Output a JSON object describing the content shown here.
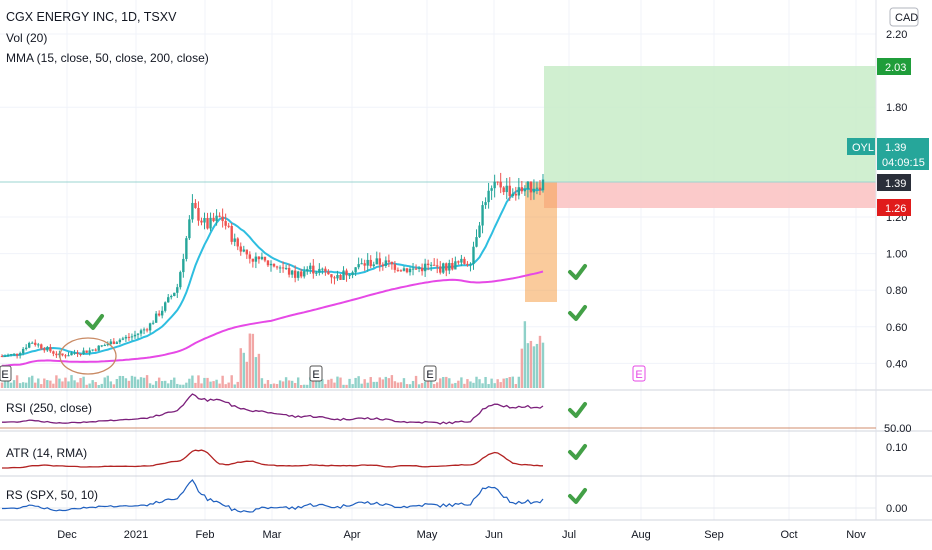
{
  "legend": {
    "title": "CGX ENERGY INC, 1D, TSXV",
    "vol": "Vol (20)",
    "mma": "MMA (15, close, 50, close, 200, close)"
  },
  "currency": "CAD",
  "price_axis": {
    "ticks": [
      "2.20",
      "1.80",
      "1.20",
      "1.00",
      "0.80",
      "0.60",
      "0.40"
    ],
    "tick_values": [
      2.2,
      1.8,
      1.2,
      1.0,
      0.8,
      0.6,
      0.4
    ],
    "range": [
      0.3,
      2.3
    ]
  },
  "badges": {
    "target": "2.03",
    "oyl_symbol": "OYL",
    "oyl_price": "1.39",
    "oyl_countdown": "04:09:15",
    "last": "1.39",
    "stop": "1.26"
  },
  "colors": {
    "up": "#26a69a",
    "down": "#ef5350",
    "ma15": "#2ebee0",
    "ma200": "#e649e6",
    "rsi": "#7b1f7b",
    "atr": "#b22222",
    "rs": "#1e5fbf",
    "target_zone": "#c8ecc8",
    "stop_zone": "#fbc4c4",
    "check": "#43a047"
  },
  "earnings_marker": "E",
  "panes": {
    "rsi": {
      "label": "RSI (250, close)",
      "tick": "50.00"
    },
    "atr": {
      "label": "ATR (14, RMA)",
      "tick": "0.10"
    },
    "rs": {
      "label": "RS (SPX, 50, 10)",
      "tick": "0.00"
    }
  },
  "time_axis": [
    "Dec",
    "2021",
    "Feb",
    "Mar",
    "Apr",
    "May",
    "Jun",
    "Jul",
    "Aug",
    "Sep",
    "Oct",
    "Nov"
  ],
  "chart_data": {
    "type": "candlestick",
    "title": "CGX ENERGY INC, 1D, TSXV",
    "x_axis": [
      "Dec",
      "2021",
      "Feb",
      "Mar",
      "Apr",
      "May",
      "Jun",
      "Jul",
      "Aug",
      "Sep",
      "Oct",
      "Nov"
    ],
    "y_range": [
      0.3,
      2.3
    ],
    "close_series": {
      "name": "close",
      "x": [
        "Nov 24",
        "Dec 1",
        "Dec 8",
        "Dec 15",
        "Dec 22",
        "Dec 29",
        "Jan 5",
        "Jan 12",
        "Jan 19",
        "Jan 26",
        "Feb 2",
        "Feb 9",
        "Feb 14",
        "Feb 18",
        "Feb 22",
        "Feb 24",
        "Feb 26",
        "Mar 3",
        "Mar 10",
        "Mar 17",
        "Mar 24",
        "Mar 31",
        "Apr 7",
        "Apr 14",
        "Apr 21",
        "Apr 28",
        "May 5",
        "May 12",
        "May 19",
        "May 26",
        "Jun 2",
        "Jun 7",
        "Jun 10",
        "Jun 14",
        "Jun 15",
        "Jun 16",
        "Jun 17",
        "Jun 18"
      ],
      "values": [
        0.44,
        0.45,
        0.52,
        0.48,
        0.44,
        0.46,
        0.47,
        0.5,
        0.53,
        0.55,
        0.6,
        0.7,
        0.82,
        1.25,
        1.15,
        1.2,
        1.05,
        0.98,
        0.95,
        0.93,
        0.88,
        0.92,
        0.9,
        0.87,
        0.92,
        0.95,
        0.95,
        0.93,
        0.91,
        0.93,
        0.92,
        0.94,
        0.96,
        1.3,
        1.38,
        1.33,
        1.36,
        1.39
      ]
    },
    "target": 2.03,
    "last": 1.39,
    "stop": 1.26,
    "entry_zone": [
      0.74,
      1.39
    ]
  }
}
